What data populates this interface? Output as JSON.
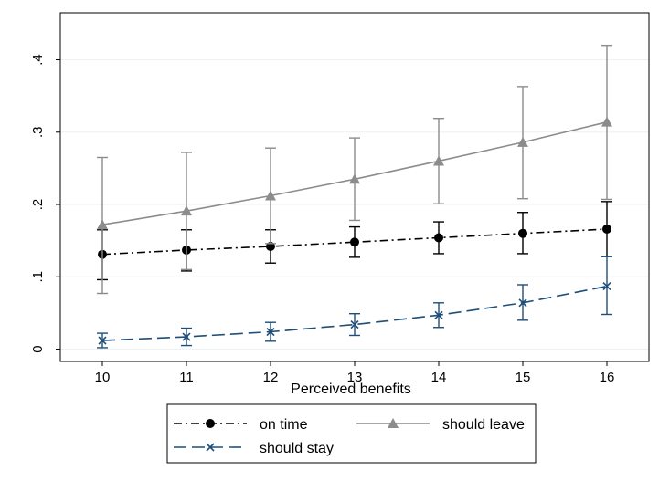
{
  "chart_data": {
    "type": "line",
    "title": "",
    "xlabel": "Perceived benefits",
    "ylabel": "",
    "x": [
      10,
      11,
      12,
      13,
      14,
      15,
      16
    ],
    "xlim": [
      9.5,
      16.5
    ],
    "ylim": [
      -0.017,
      0.465
    ],
    "xticks": [
      "10",
      "11",
      "12",
      "13",
      "14",
      "15",
      "16"
    ],
    "yticks": [
      {
        "value": 0,
        "label": "0"
      },
      {
        "value": 0.1,
        "label": ".1"
      },
      {
        "value": 0.2,
        "label": ".2"
      },
      {
        "value": 0.3,
        "label": ".3"
      },
      {
        "value": 0.4,
        "label": ".4"
      }
    ],
    "grid": true,
    "legend_position": "bottom",
    "series": [
      {
        "name": "on time",
        "color": "#000000",
        "marker": "circle",
        "line_style": "dash-dot",
        "values": [
          0.131,
          0.137,
          0.142,
          0.148,
          0.154,
          0.16,
          0.166
        ],
        "ci_low": [
          0.096,
          0.108,
          0.119,
          0.127,
          0.132,
          0.132,
          0.128
        ],
        "ci_high": [
          0.165,
          0.165,
          0.165,
          0.169,
          0.176,
          0.189,
          0.204
        ]
      },
      {
        "name": "should leave",
        "color": "#8c8c8c",
        "marker": "triangle",
        "line_style": "solid",
        "values": [
          0.172,
          0.191,
          0.212,
          0.235,
          0.26,
          0.286,
          0.314
        ],
        "ci_low": [
          0.077,
          0.11,
          0.146,
          0.178,
          0.201,
          0.208,
          0.207
        ],
        "ci_high": [
          0.265,
          0.272,
          0.278,
          0.292,
          0.319,
          0.363,
          0.42
        ]
      },
      {
        "name": "should stay",
        "color": "#1f4e79",
        "marker": "x",
        "line_style": "long-dash",
        "values": [
          0.012,
          0.017,
          0.024,
          0.034,
          0.047,
          0.064,
          0.087
        ],
        "ci_low": [
          0.002,
          0.005,
          0.011,
          0.019,
          0.03,
          0.04,
          0.048
        ],
        "ci_high": [
          0.022,
          0.029,
          0.037,
          0.049,
          0.064,
          0.089,
          0.128
        ]
      }
    ]
  }
}
